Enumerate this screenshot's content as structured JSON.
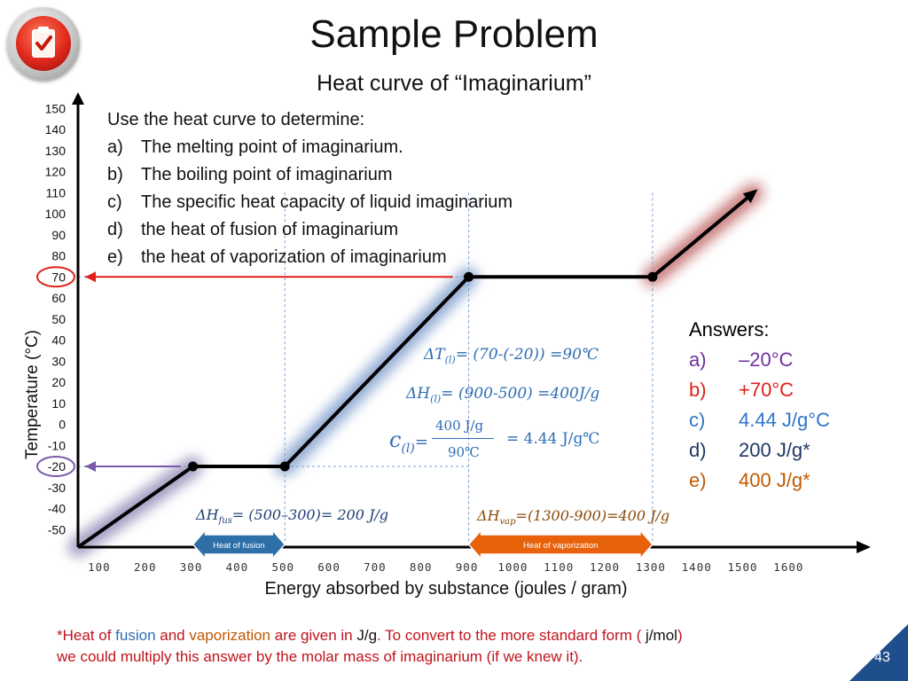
{
  "slide": {
    "title": "Sample Problem",
    "subtitle": "Heat curve of “Imaginarium”",
    "page_number": "43",
    "logo_icon": "clipboard-check-icon"
  },
  "questions": {
    "intro": "Use the heat curve to determine:",
    "items": [
      {
        "letter": "a)",
        "text": "The melting point of imaginarium."
      },
      {
        "letter": "b)",
        "text": "The boiling point of imaginarium"
      },
      {
        "letter": "c)",
        "text": "The specific heat capacity of liquid imaginarium"
      },
      {
        "letter": "d)",
        "text": "the heat of fusion of imaginarium"
      },
      {
        "letter": "e)",
        "text": "the heat of vaporization of imaginarium"
      }
    ]
  },
  "answers": {
    "header": "Answers:",
    "items": [
      {
        "letter": "a)",
        "text": "–20°C",
        "color": "#7030a0"
      },
      {
        "letter": "b)",
        "text": "+70°C",
        "color": "#e0201a"
      },
      {
        "letter": "c)",
        "text": "4.44 J/g°C",
        "color": "#2e74c8"
      },
      {
        "letter": "d)",
        "text": "200 J/g*",
        "color": "#1f3864"
      },
      {
        "letter": "e)",
        "text": "400 J/g*",
        "color": "#c05a00"
      }
    ]
  },
  "calculations": {
    "delta_t": {
      "symbol": "Δ",
      "var": "T",
      "sub": "(l)",
      "expr": "= (70-(-20)) =90℃"
    },
    "delta_h_liquid": {
      "symbol": "Δ",
      "var": "H",
      "sub": "(l)",
      "expr": "= (900-500) =400J/g"
    },
    "specific_heat": {
      "lhs": "c",
      "sub": "(l)",
      "eq": "=",
      "numerator": "400 J/g",
      "denominator": "90℃",
      "result": "= 4.44 J/g℃"
    },
    "delta_h_fus": {
      "symbol": "Δ",
      "var": "H",
      "sub": "fus",
      "expr": "= (500–300)= 200 J/g"
    },
    "delta_h_vap": {
      "symbol": "Δ",
      "var": "H",
      "sub": "vap",
      "expr": "=(1300-900)=400 J/g"
    }
  },
  "arrows": {
    "fusion_label": "Heat of fusion",
    "vaporization_label": "Heat of  vaporization"
  },
  "footnote": {
    "p1": "*Heat of ",
    "fusion": "fusion",
    "p2": " and ",
    "vaporization": "vaporization",
    "p3": " are given in ",
    "unit1": "J/g",
    "p4": ".  To convert to the more standard form ( ",
    "unit2": "j/mol",
    "p5": ")",
    "line2": "we could multiply this answer by the molar mass of imaginarium (if we knew it)."
  },
  "chart_data": {
    "type": "line",
    "ylabel": "Temperature (°C)",
    "xlabel": "Energy absorbed by substance (joules / gram)",
    "x_ticks": [
      100,
      200,
      300,
      400,
      500,
      600,
      700,
      800,
      900,
      1000,
      1100,
      1200,
      1300,
      1400,
      1500,
      1600
    ],
    "y_ticks": [
      150,
      140,
      130,
      120,
      110,
      100,
      90,
      80,
      70,
      60,
      50,
      40,
      30,
      20,
      10,
      0,
      -10,
      -20,
      -30,
      -40,
      -50
    ],
    "series": [
      {
        "values": [
          {
            "x": 50,
            "y": -60
          },
          {
            "x": 300,
            "y": -20
          },
          {
            "x": 500,
            "y": -20
          },
          {
            "x": 900,
            "y": 70
          },
          {
            "x": 1300,
            "y": 70
          },
          {
            "x": 1520,
            "y": 110
          }
        ]
      }
    ],
    "key_points": [
      {
        "x": 300,
        "y": -20
      },
      {
        "x": 500,
        "y": -20
      },
      {
        "x": 900,
        "y": 70
      },
      {
        "x": 1300,
        "y": 70
      }
    ],
    "highlights": {
      "solid": "#5a4a8f",
      "melting": "#2e8b7a",
      "liquid": "#3a6bb3",
      "boiling": "#b07a10",
      "gas": "#a01818"
    },
    "marked_temperatures": [
      {
        "y": 70,
        "color": "#e0201a"
      },
      {
        "y": -20,
        "color": "#7a5aa8"
      }
    ],
    "range_arrows": [
      {
        "from": 300,
        "to": 500,
        "color": "#2f6fa8"
      },
      {
        "from": 900,
        "to": 1300,
        "color": "#e8620c"
      }
    ],
    "guide_lines": [
      500,
      900,
      1300
    ]
  }
}
